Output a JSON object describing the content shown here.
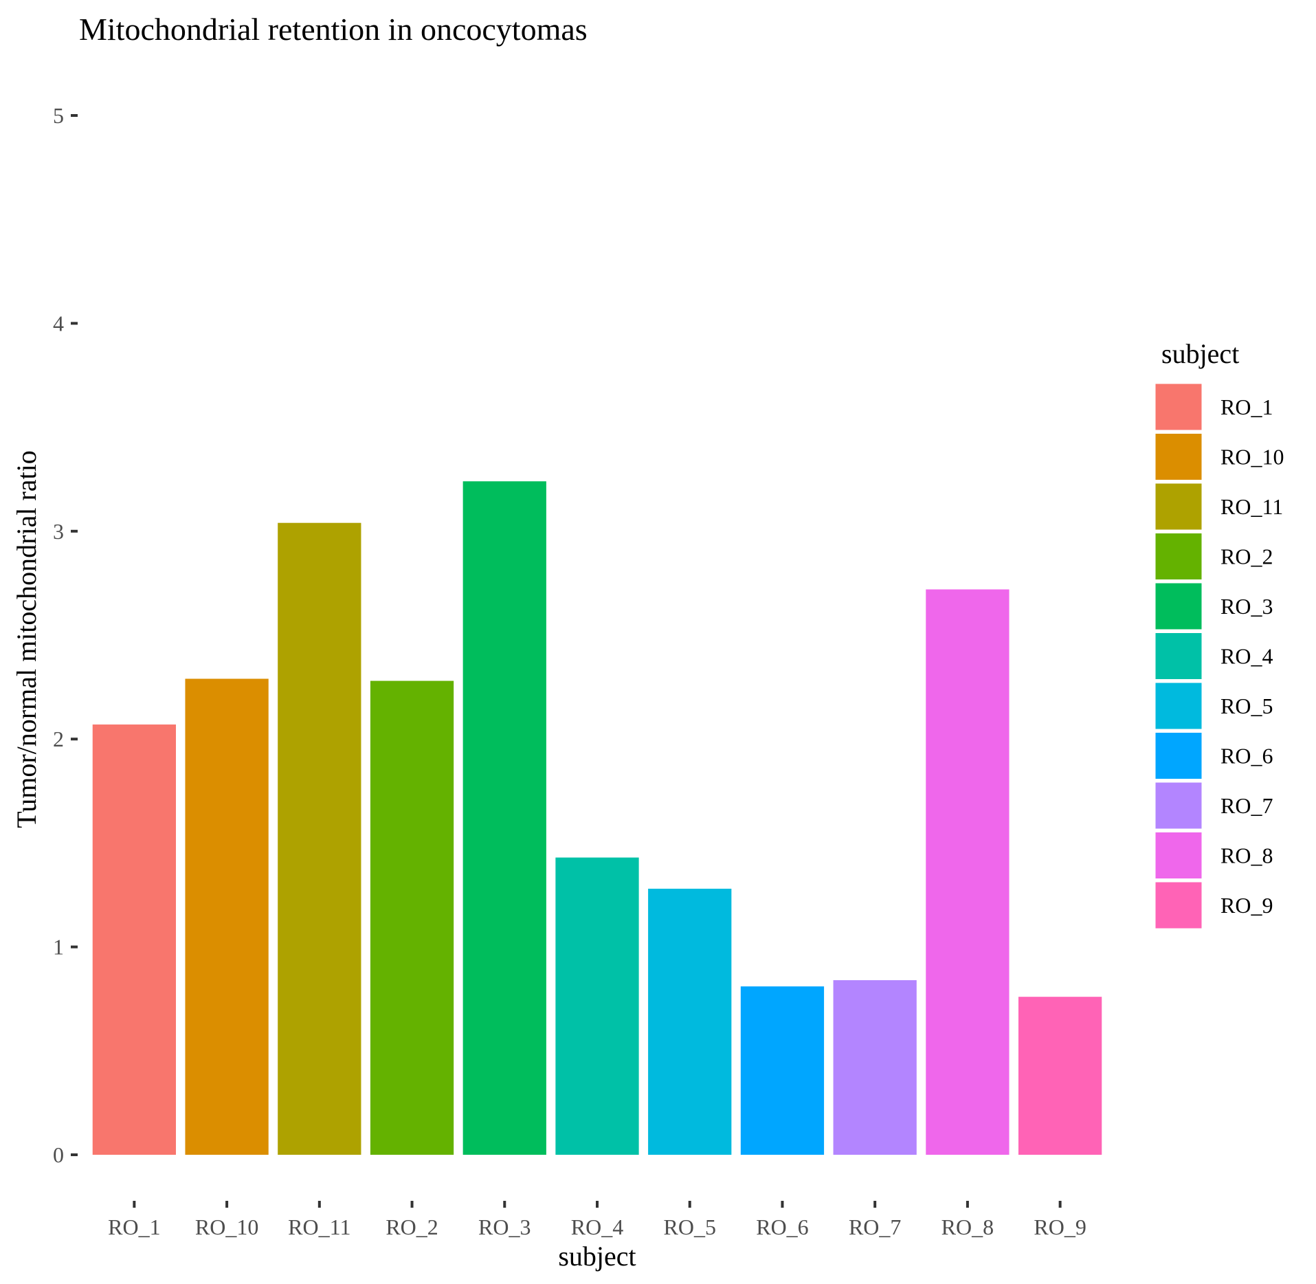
{
  "chart_data": {
    "type": "bar",
    "title": "Mitochondrial retention in oncocytomas",
    "xlabel": "subject",
    "ylabel": "Tumor/normal mitochondrial ratio",
    "ylim": [
      0,
      5
    ],
    "yticks": [
      0,
      1,
      2,
      3,
      4,
      5
    ],
    "grid": false,
    "legend": {
      "title": "subject",
      "position": "right"
    },
    "categories": [
      "RO_1",
      "RO_10",
      "RO_11",
      "RO_2",
      "RO_3",
      "RO_4",
      "RO_5",
      "RO_6",
      "RO_7",
      "RO_8",
      "RO_9"
    ],
    "values": [
      2.07,
      2.29,
      3.04,
      2.28,
      3.24,
      1.43,
      1.28,
      0.81,
      0.84,
      2.72,
      0.76
    ],
    "colors": [
      "#F8766D",
      "#DB8E00",
      "#AEA200",
      "#64B200",
      "#00BD5C",
      "#00C1A7",
      "#00BADE",
      "#00A6FF",
      "#B385FF",
      "#EF67EB",
      "#FF63B6"
    ]
  }
}
